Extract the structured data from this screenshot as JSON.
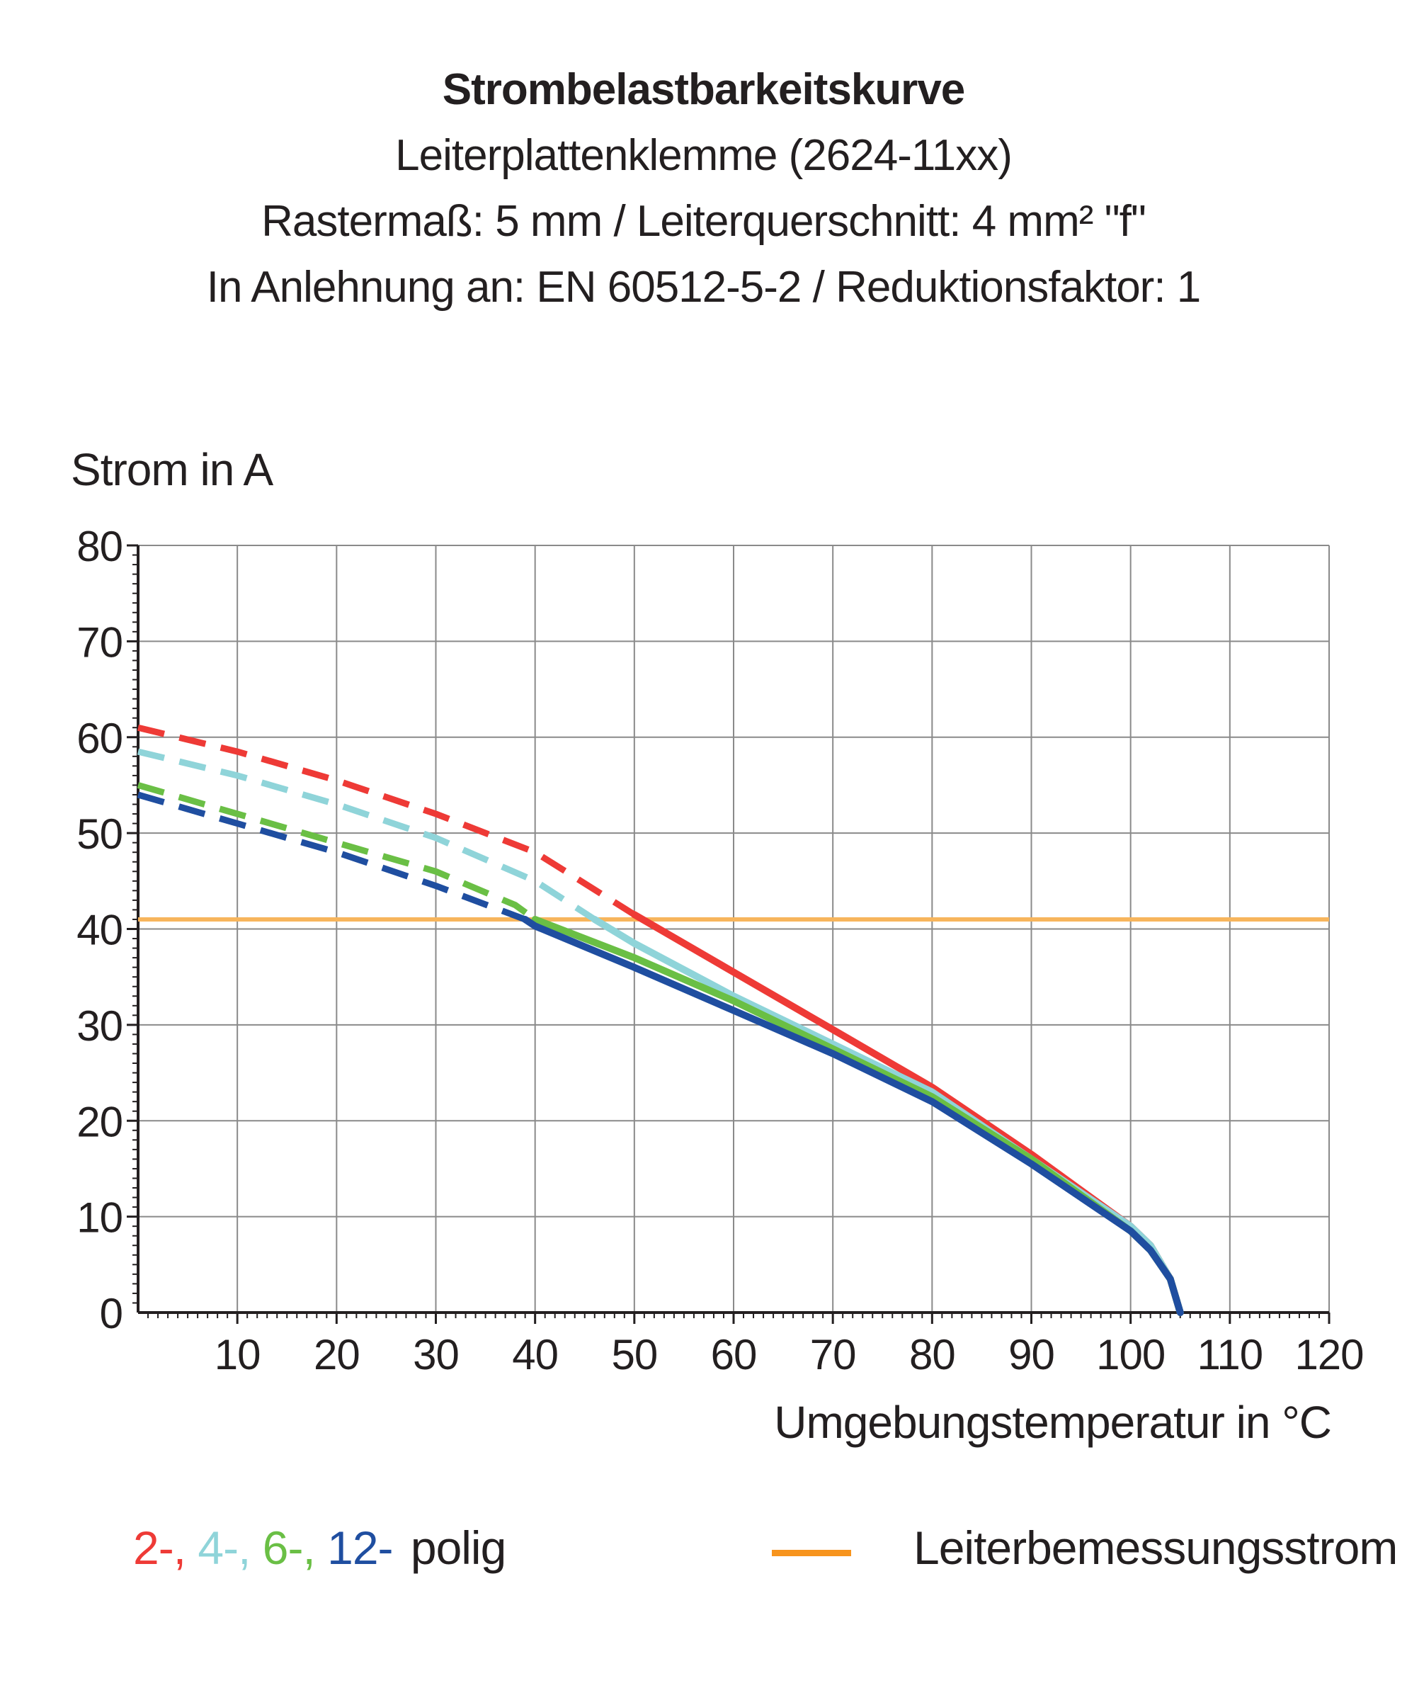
{
  "chart_data": {
    "type": "line",
    "title": "Strombelastbarkeitskurve",
    "subtitles": [
      "Leiterplattenklemme (2624-11xx)",
      "Rastermaß: 5 mm / Leiterquerschnitt: 4 mm² \"f\"",
      "In Anlehnung an: EN 60512-5-2 / Reduktionsfaktor: 1"
    ],
    "ylabel": "Strom in A",
    "xlabel": "Umgebungstemperatur in °C",
    "xlim": [
      0,
      120
    ],
    "ylim": [
      0,
      80
    ],
    "xticks": [
      10,
      20,
      30,
      40,
      50,
      60,
      70,
      80,
      90,
      100,
      110,
      120
    ],
    "yticks": [
      0,
      10,
      20,
      30,
      40,
      50,
      60,
      70,
      80
    ],
    "grid": true,
    "reference_line": {
      "name": "Leiterbemessungsstrom",
      "y": 41,
      "color": "#f7b55c",
      "legend_color": "#f7941d"
    },
    "series": [
      {
        "name": "2-",
        "color": "#ee3a36",
        "points": [
          [
            0,
            61
          ],
          [
            10,
            58.5
          ],
          [
            20,
            55.5
          ],
          [
            30,
            52
          ],
          [
            40,
            48
          ],
          [
            50,
            41.5
          ],
          [
            60,
            35.5
          ],
          [
            70,
            29.5
          ],
          [
            80,
            23.5
          ],
          [
            90,
            16.5
          ],
          [
            100,
            9
          ],
          [
            102,
            7
          ],
          [
            104,
            3.5
          ],
          [
            105,
            0
          ]
        ]
      },
      {
        "name": "4-",
        "color": "#8fd4d9",
        "points": [
          [
            0,
            58.5
          ],
          [
            10,
            56
          ],
          [
            20,
            53
          ],
          [
            30,
            49.5
          ],
          [
            40,
            45
          ],
          [
            46,
            41
          ],
          [
            50,
            38.5
          ],
          [
            60,
            33
          ],
          [
            70,
            28
          ],
          [
            80,
            23
          ],
          [
            90,
            16
          ],
          [
            100,
            9
          ],
          [
            102,
            7
          ],
          [
            104,
            3.5
          ],
          [
            105,
            0
          ]
        ]
      },
      {
        "name": "6-",
        "color": "#6abf45",
        "points": [
          [
            0,
            55
          ],
          [
            10,
            52
          ],
          [
            20,
            49
          ],
          [
            30,
            46
          ],
          [
            38,
            42.5
          ],
          [
            40,
            41
          ],
          [
            50,
            37
          ],
          [
            60,
            32.5
          ],
          [
            70,
            27.5
          ],
          [
            80,
            22.5
          ],
          [
            90,
            16
          ],
          [
            100,
            8.5
          ],
          [
            102,
            6.5
          ],
          [
            104,
            3.5
          ],
          [
            105,
            0
          ]
        ]
      },
      {
        "name": "12-",
        "color": "#1f4ea0",
        "points": [
          [
            0,
            54
          ],
          [
            10,
            51
          ],
          [
            20,
            48
          ],
          [
            30,
            44.5
          ],
          [
            39,
            41
          ],
          [
            40,
            40.3
          ],
          [
            50,
            36
          ],
          [
            60,
            31.5
          ],
          [
            70,
            27
          ],
          [
            80,
            22
          ],
          [
            90,
            15.5
          ],
          [
            100,
            8.5
          ],
          [
            102,
            6.5
          ],
          [
            104,
            3.5
          ],
          [
            105,
            0
          ]
        ]
      }
    ]
  },
  "legend": {
    "poles_suffix": "polig",
    "rated_label": "Leiterbemessungsstrom"
  }
}
